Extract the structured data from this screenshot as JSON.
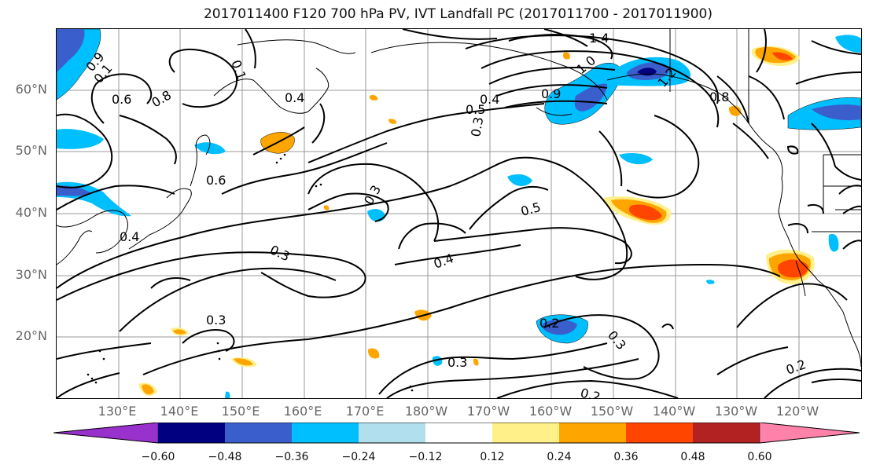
{
  "title": "2017011400 F120 700 hPa PV, IVT Landfall PC (2017011700 - 2017011900)",
  "lat_labels": [
    "60°N",
    "50°N",
    "40°N",
    "30°N",
    "20°N"
  ],
  "lon_labels": [
    "130°E",
    "140°E",
    "150°E",
    "160°E",
    "170°E",
    "180°W",
    "170°W",
    "160°W",
    "150°W",
    "140°W",
    "130°W",
    "120°W"
  ],
  "colorbar": {
    "colors": [
      "#9932cc",
      "#000080",
      "#3a5fcd",
      "#00bfff",
      "#b2dfee",
      "#ffffff",
      "#fff08a",
      "#ffa500",
      "#ff4500",
      "#b22222",
      "#ff82ab"
    ],
    "tick_labels": [
      "−0.60",
      "−0.48",
      "−0.36",
      "−0.24",
      "−0.12",
      "0.12",
      "0.24",
      "0.36",
      "0.48",
      "0.60"
    ]
  },
  "contour_labels": [
    "1.4",
    "0.9",
    "0.1",
    "0.6",
    "0.8",
    "0.4",
    "0.1",
    "0.8",
    "0.4",
    "0.5",
    "0.9",
    "1.0",
    "0.3",
    "0.6",
    "0.4",
    "0.3",
    "0.5",
    "0.3",
    "0.4",
    "0.3",
    "0.2",
    "0.3",
    "0.3",
    "0.2",
    "0.2",
    "1.2"
  ]
}
